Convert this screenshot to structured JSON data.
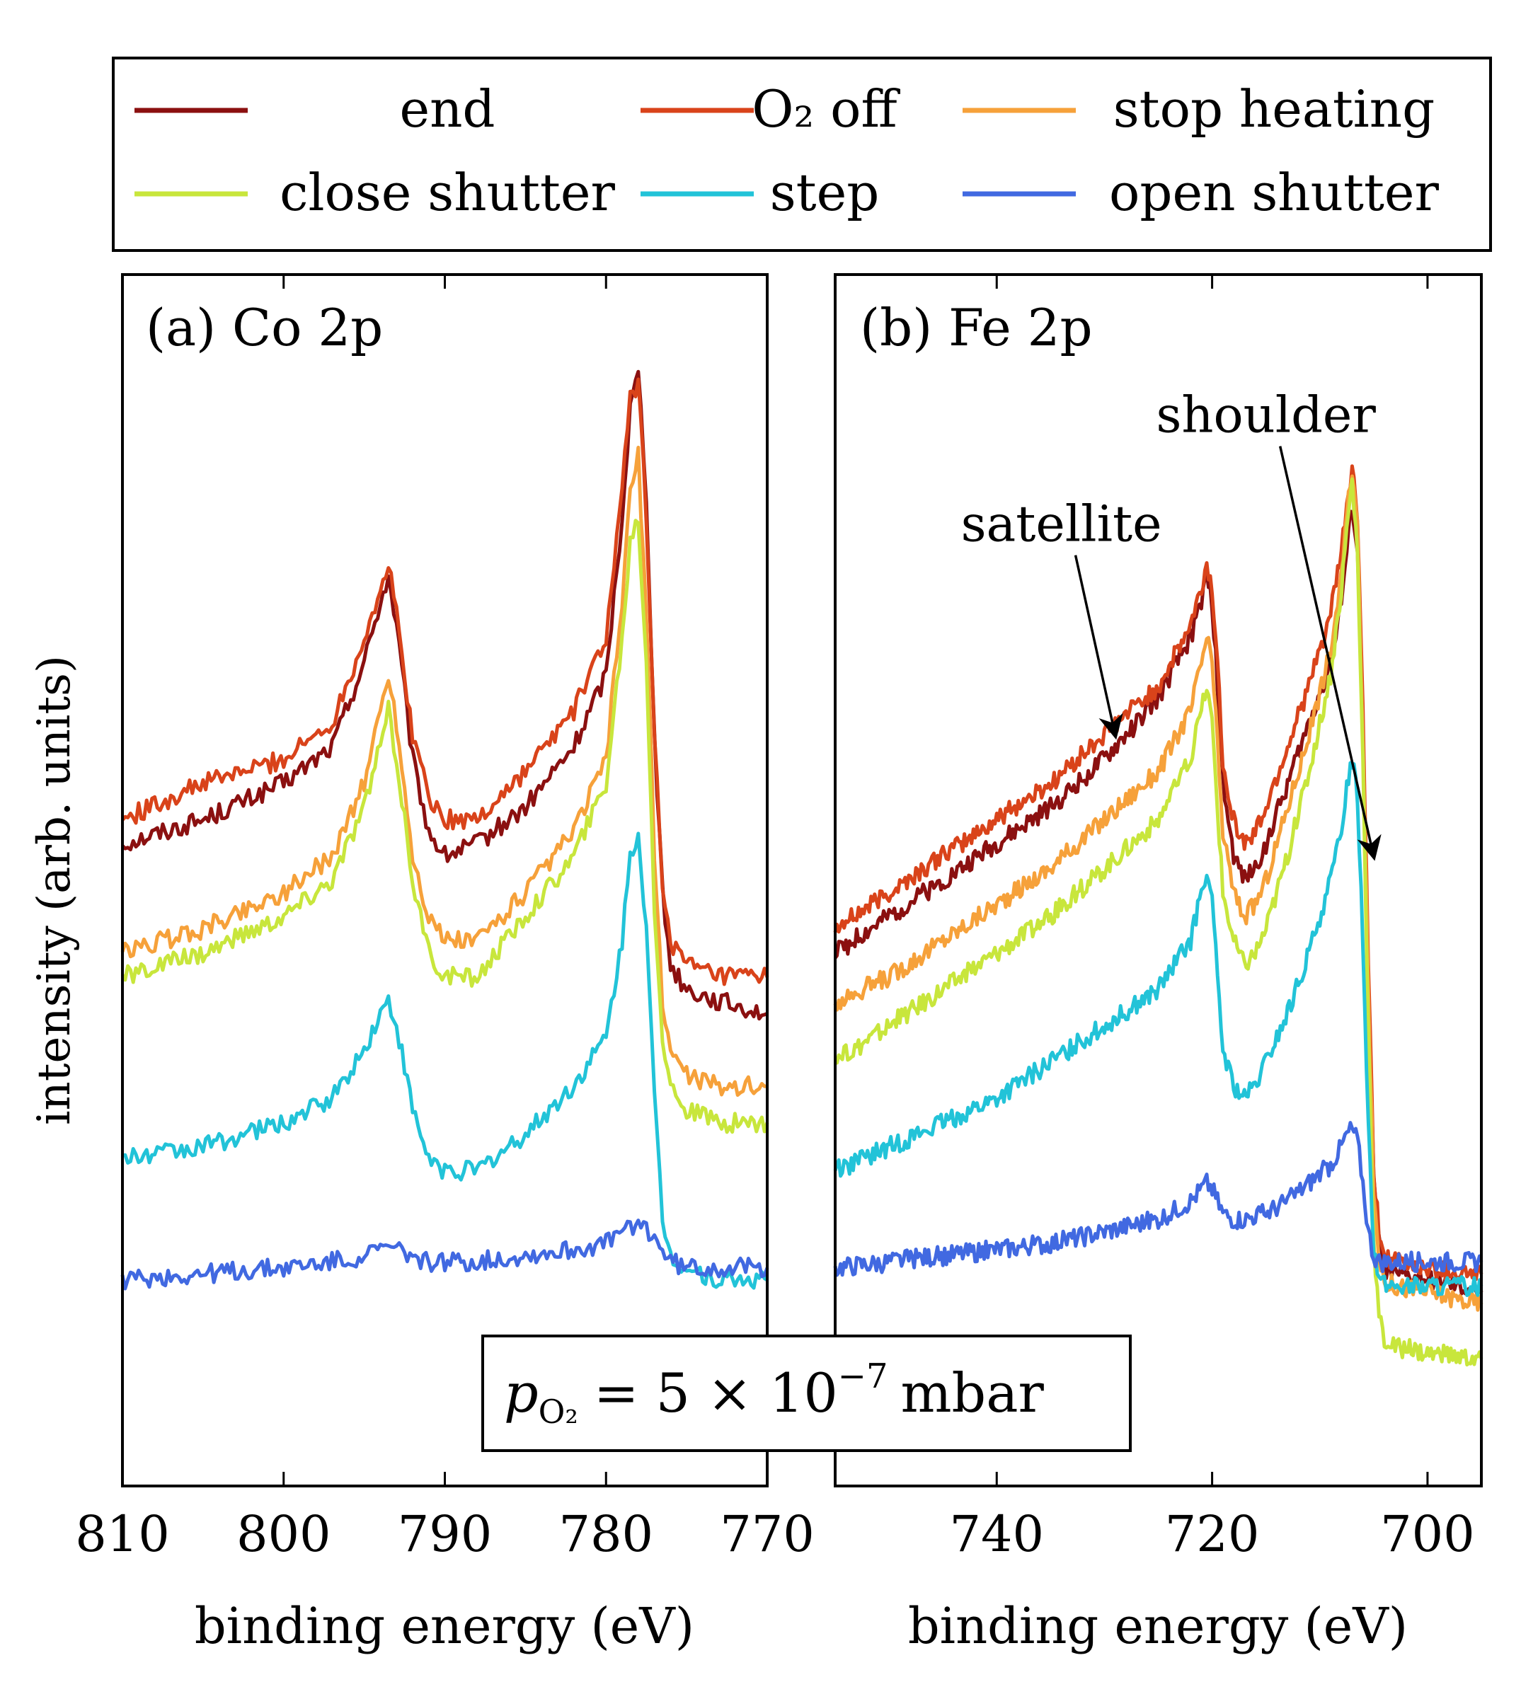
{
  "legend": {
    "entries": [
      {
        "label": "end",
        "color": "#8B1010"
      },
      {
        "label": "O₂ off",
        "color": "#D9431A"
      },
      {
        "label": "stop heating",
        "color": "#F6A13A"
      },
      {
        "label": "close shutter",
        "color": "#C8E63C"
      },
      {
        "label": "step",
        "color": "#22C3D8"
      },
      {
        "label": "open shutter",
        "color": "#4169E1"
      }
    ]
  },
  "ylabel": "intensity (arb. units)",
  "pressure_note": {
    "lhs": "p",
    "lhs_sub": "O₂",
    "rhs": "= 5 × 10",
    "exponent": "−7",
    "unit": "mbar"
  },
  "chart_data": [
    {
      "type": "line",
      "title": "(a) Co 2p",
      "xlabel": "binding energy (eV)",
      "ylabel": "intensity (arb. units)",
      "xlim": [
        810,
        770
      ],
      "ylim": [
        0,
        100
      ],
      "xticks": [
        810,
        800,
        790,
        780,
        770
      ],
      "xtick_labels": [
        "810",
        "800",
        "790",
        "780",
        "770"
      ],
      "series": [
        {
          "name": "end",
          "color": "#8B1010",
          "x": [
            810,
            805,
            800,
            797,
            795,
            794,
            793.5,
            793,
            792,
            791,
            790,
            788,
            785,
            782,
            780,
            779,
            778.5,
            778,
            777.5,
            777,
            776.5,
            776,
            775,
            773,
            770
          ],
          "y": [
            53,
            55,
            58,
            61,
            68,
            73,
            75,
            71,
            60,
            54,
            52,
            53,
            56,
            61,
            67,
            80,
            89,
            92,
            82,
            62,
            49,
            43,
            41,
            40,
            39
          ]
        },
        {
          "name": "O₂ off",
          "color": "#D9431A",
          "x": [
            810,
            805,
            800,
            797,
            795,
            794,
            793.5,
            793,
            792,
            791,
            790,
            788,
            785,
            782,
            780,
            779,
            778.5,
            778,
            777.5,
            777,
            776.5,
            776,
            775,
            773,
            770
          ],
          "y": [
            55,
            58,
            60,
            63,
            70,
            74,
            76,
            72,
            62,
            57,
            55,
            55,
            59,
            64,
            70,
            82,
            90,
            91,
            80,
            62,
            50,
            45,
            43,
            42,
            42
          ]
        },
        {
          "name": "stop heating",
          "color": "#F6A13A",
          "x": [
            810,
            805,
            800,
            797,
            795,
            794,
            793.5,
            793,
            792,
            791,
            790,
            788,
            785,
            782,
            780,
            779,
            778.5,
            778,
            777.5,
            777,
            776.5,
            776,
            775,
            773,
            770
          ],
          "y": [
            44,
            46,
            49,
            52,
            58,
            64,
            67,
            63,
            52,
            47,
            45,
            45,
            49,
            54,
            60,
            73,
            82,
            85,
            72,
            52,
            40,
            36,
            34,
            33,
            33
          ]
        },
        {
          "name": "close shutter",
          "color": "#C8E63C",
          "x": [
            810,
            805,
            800,
            797,
            795,
            794,
            793.5,
            793,
            792,
            791,
            790,
            788,
            785,
            782,
            780,
            779,
            778.5,
            778,
            777.5,
            777,
            776.5,
            776,
            775,
            773,
            770
          ],
          "y": [
            42,
            44,
            47,
            50,
            56,
            61,
            64,
            60,
            50,
            44,
            42,
            42,
            47,
            52,
            58,
            70,
            78,
            80,
            68,
            48,
            37,
            33,
            31,
            30,
            30
          ]
        },
        {
          "name": "step",
          "color": "#22C3D8",
          "x": [
            810,
            805,
            800,
            797,
            795,
            794,
            793.5,
            793,
            792,
            791,
            790,
            788,
            785,
            782,
            780,
            779,
            778.5,
            778,
            777.5,
            777,
            776.5,
            776,
            775,
            773,
            770
          ],
          "y": [
            27,
            28,
            30,
            32,
            36,
            39,
            40,
            38,
            31,
            27,
            26,
            26,
            29,
            33,
            37,
            45,
            52,
            54,
            46,
            32,
            22,
            19,
            18,
            17,
            17
          ]
        },
        {
          "name": "open shutter",
          "color": "#4169E1",
          "x": [
            810,
            805,
            800,
            797,
            795,
            794,
            793.5,
            793,
            792,
            791,
            790,
            788,
            785,
            782,
            780,
            779,
            778.5,
            778,
            777.5,
            777,
            776.5,
            776,
            775,
            773,
            770
          ],
          "y": [
            17,
            17.5,
            18,
            18.5,
            19,
            19.5,
            19.7,
            19.5,
            19,
            18.5,
            18.5,
            18.5,
            19,
            19.5,
            20,
            21,
            21.5,
            21.7,
            21.2,
            20.5,
            19.5,
            18.5,
            18,
            18,
            18
          ]
        }
      ]
    },
    {
      "type": "line",
      "title": "(b) Fe 2p",
      "xlabel": "binding energy (eV)",
      "ylabel": "intensity (arb. units)",
      "xlim": [
        755,
        695
      ],
      "ylim": [
        0,
        100
      ],
      "xticks": [
        740,
        720,
        700
      ],
      "xtick_labels": [
        "740",
        "720",
        "700"
      ],
      "annotations": [
        {
          "text": "satellite",
          "x": 734,
          "y": 78,
          "arrow_to_x": 729,
          "arrow_to_y": 62
        },
        {
          "text": "shoulder",
          "x": 715,
          "y": 87,
          "arrow_to_x": 705,
          "arrow_to_y": 52
        }
      ],
      "series": [
        {
          "name": "end",
          "color": "#8B1010",
          "x": [
            755,
            750,
            745,
            740,
            735,
            730,
            725,
            722,
            721,
            720.5,
            720,
            719.5,
            719,
            718,
            717,
            716,
            715,
            713,
            711,
            709,
            708,
            707.5,
            707,
            706.5,
            706,
            705.5,
            705,
            704.5,
            704,
            703,
            700,
            695
          ],
          "y": [
            44,
            47,
            50,
            53,
            56,
            60,
            65,
            70,
            73,
            75,
            73,
            66,
            58,
            52,
            50,
            51,
            53,
            58,
            63,
            68,
            73,
            77,
            81,
            77,
            62,
            42,
            25,
            20,
            18,
            17.5,
            17,
            16
          ]
        },
        {
          "name": "O₂ off",
          "color": "#D9431A",
          "x": [
            755,
            750,
            745,
            740,
            735,
            730,
            725,
            722,
            721,
            720.5,
            720,
            719.5,
            719,
            718,
            717,
            716,
            715,
            713,
            711,
            709,
            708,
            707.5,
            707,
            706.5,
            706,
            705.5,
            705,
            704.5,
            704,
            703,
            700,
            695
          ],
          "y": [
            46,
            49,
            52,
            55,
            58,
            62,
            66,
            71,
            74,
            76,
            74,
            68,
            60,
            55,
            53,
            54,
            56,
            61,
            66,
            72,
            77,
            81,
            84,
            80,
            64,
            43,
            26,
            21,
            19,
            18.5,
            18,
            17.5
          ]
        },
        {
          "name": "stop heating",
          "color": "#F6A13A",
          "x": [
            755,
            750,
            745,
            740,
            735,
            730,
            725,
            722,
            721,
            720.5,
            720,
            719.5,
            719,
            718,
            717,
            716,
            715,
            713,
            711,
            709,
            708,
            707.5,
            707,
            706.5,
            706,
            705.5,
            705,
            704.5,
            704,
            703,
            700,
            695
          ],
          "y": [
            40,
            42,
            45,
            48,
            51,
            55,
            59,
            64,
            68,
            70,
            68,
            61,
            54,
            49,
            47,
            48,
            50,
            56,
            62,
            69,
            75,
            80,
            84,
            79,
            62,
            41,
            24,
            19,
            17,
            16.5,
            16,
            15
          ]
        },
        {
          "name": "close shutter",
          "color": "#C8E63C",
          "x": [
            755,
            750,
            745,
            740,
            735,
            730,
            725,
            722,
            721,
            720.5,
            720,
            719.5,
            719,
            718,
            717,
            716,
            715,
            713,
            711,
            709,
            708,
            707.5,
            707,
            706.5,
            706,
            705.5,
            705,
            704.5,
            704,
            703,
            700,
            695
          ],
          "y": [
            35,
            38,
            41,
            44,
            47,
            51,
            55,
            60,
            64,
            66,
            63,
            56,
            49,
            45,
            43,
            44,
            46,
            52,
            59,
            67,
            74,
            79,
            83,
            77,
            60,
            38,
            20,
            14,
            12,
            11.5,
            11,
            10.5
          ]
        },
        {
          "name": "step",
          "color": "#22C3D8",
          "x": [
            755,
            750,
            745,
            740,
            735,
            730,
            725,
            722,
            721,
            720.5,
            720,
            719.5,
            719,
            718,
            717,
            716,
            715,
            713,
            711,
            709,
            708,
            707.5,
            707,
            706.5,
            706,
            705.5,
            705,
            704.5,
            704,
            703,
            700,
            695
          ],
          "y": [
            26,
            28,
            30,
            32,
            35,
            38,
            41,
            45,
            49,
            51,
            48,
            42,
            36,
            33,
            32,
            33,
            35,
            39,
            44,
            50,
            54,
            58,
            60,
            57,
            45,
            30,
            20,
            17,
            16.5,
            16.5,
            16.5,
            16.5
          ]
        },
        {
          "name": "open shutter",
          "color": "#4169E1",
          "x": [
            755,
            750,
            745,
            740,
            735,
            730,
            725,
            722,
            721,
            720.5,
            720,
            719.5,
            719,
            718,
            717,
            716,
            715,
            713,
            711,
            709,
            708,
            707.5,
            707,
            706.5,
            706,
            705.5,
            705,
            704.5,
            704,
            703,
            700,
            695
          ],
          "y": [
            18,
            18.5,
            19,
            19.5,
            20,
            21,
            22,
            23.5,
            24.5,
            25,
            24.5,
            23.5,
            22.5,
            22,
            22,
            22.3,
            22.5,
            23.5,
            25,
            26.5,
            28,
            29,
            29.5,
            28.5,
            25,
            21,
            19,
            18.5,
            18.5,
            18.5,
            18.5,
            18.5
          ]
        }
      ]
    }
  ]
}
